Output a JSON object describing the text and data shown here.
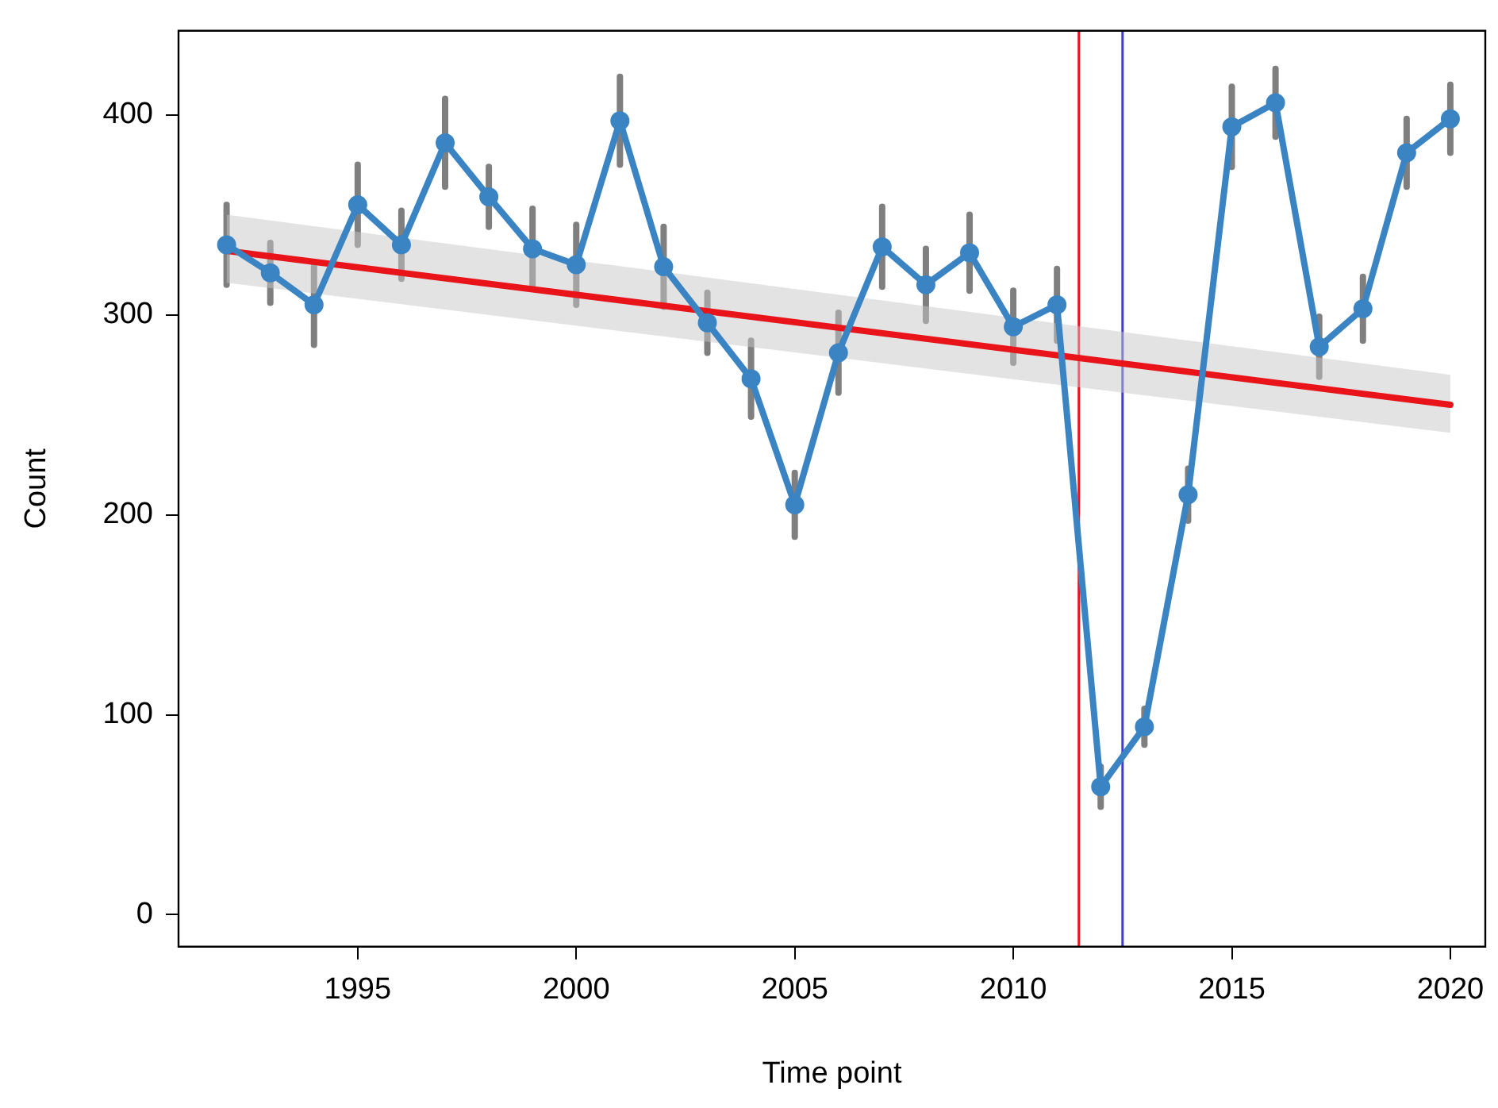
{
  "chart_data": {
    "type": "line",
    "xlabel": "Time point",
    "ylabel": "Count",
    "x": [
      1992,
      1993,
      1994,
      1995,
      1996,
      1997,
      1998,
      1999,
      2000,
      2001,
      2002,
      2003,
      2004,
      2005,
      2006,
      2007,
      2008,
      2009,
      2010,
      2011,
      2012,
      2013,
      2014,
      2015,
      2016,
      2017,
      2018,
      2019,
      2020
    ],
    "series": [
      {
        "color": "#3a84c3",
        "values": [
          335,
          321,
          305,
          355,
          335,
          386,
          359,
          333,
          325,
          397,
          324,
          296,
          268,
          205,
          281,
          334,
          315,
          331,
          294,
          305,
          64,
          94,
          210,
          394,
          406,
          284,
          303,
          381,
          398
        ],
        "errors": [
          20,
          15,
          20,
          20,
          17,
          22,
          15,
          20,
          20,
          22,
          20,
          15,
          19,
          16,
          20,
          20,
          18,
          19,
          18,
          18,
          10,
          9,
          13,
          20,
          17,
          15,
          16,
          17,
          17
        ]
      },
      {
        "type": "line",
        "color": "#e8141a",
        "x": [
          1992,
          2020
        ],
        "values": [
          332,
          255
        ],
        "lower": [
          316,
          241
        ],
        "upper": [
          350,
          270
        ],
        "marker": "none"
      }
    ],
    "ref_lines": [
      {
        "axis": "x",
        "value": 2011.5,
        "color": "#e8141a"
      },
      {
        "axis": "x",
        "value": 2012.5,
        "color": "#3b3be0"
      }
    ],
    "xlim": [
      1990.9,
      2020.8
    ],
    "xticks": [
      1995,
      2000,
      2005,
      2010,
      2015,
      2020
    ],
    "ylim": [
      -16,
      442
    ],
    "yticks": [
      0,
      100,
      200,
      300,
      400
    ],
    "grid": false,
    "legend": false,
    "marker": "circle",
    "line_style": "solid"
  }
}
